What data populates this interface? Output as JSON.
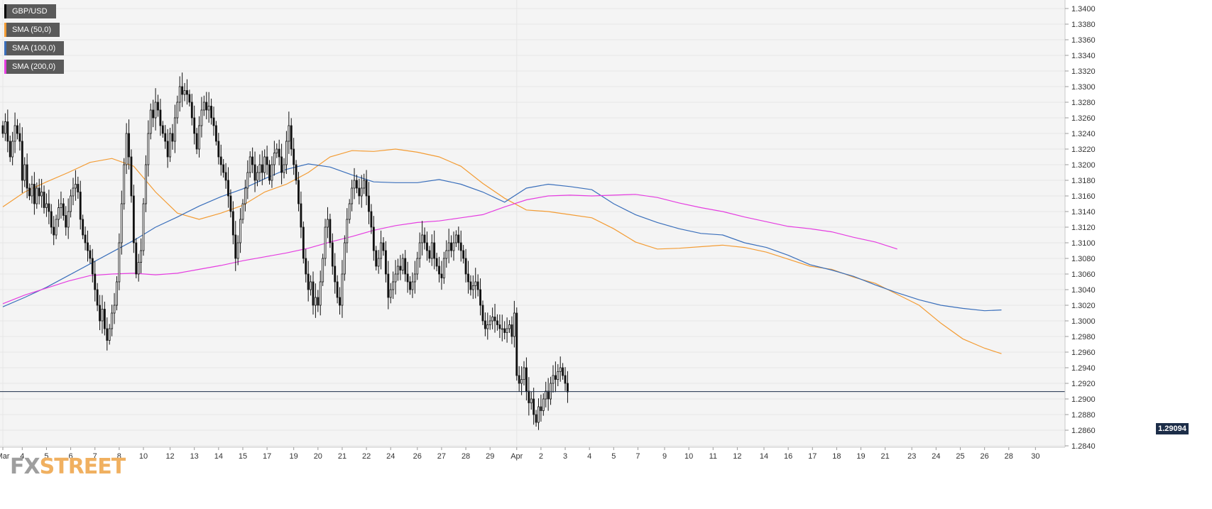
{
  "legend": [
    {
      "label": "GBP/USD",
      "color": "#000000"
    },
    {
      "label": "SMA (50,0)",
      "color": "#f39c34"
    },
    {
      "label": "SMA (100,0)",
      "color": "#3a6fbb"
    },
    {
      "label": "SMA (200,0)",
      "color": "#e53de0"
    }
  ],
  "current_price": "1.29094",
  "watermark": {
    "fx": "FX",
    "street": "STREET"
  },
  "chart_data": {
    "type": "candlestick",
    "symbol": "GBP/USD",
    "ylim": [
      1.284,
      1.34
    ],
    "y_ticks": [
      "1.3400",
      "1.3380",
      "1.3360",
      "1.3340",
      "1.3320",
      "1.3300",
      "1.3280",
      "1.3260",
      "1.3240",
      "1.3220",
      "1.3200",
      "1.3180",
      "1.3160",
      "1.3140",
      "1.3120",
      "1.3100",
      "1.3080",
      "1.3060",
      "1.3040",
      "1.3020",
      "1.3000",
      "1.2980",
      "1.2960",
      "1.2940",
      "1.2920",
      "1.2900",
      "1.2880",
      "1.2860",
      "1.2840"
    ],
    "x_ticks": [
      {
        "label": "Mar",
        "t": 0
      },
      {
        "label": "4",
        "t": 8
      },
      {
        "label": "5",
        "t": 18
      },
      {
        "label": "6",
        "t": 28
      },
      {
        "label": "7",
        "t": 38
      },
      {
        "label": "8",
        "t": 48
      },
      {
        "label": "10",
        "t": 58
      },
      {
        "label": "12",
        "t": 69
      },
      {
        "label": "13",
        "t": 79
      },
      {
        "label": "14",
        "t": 89
      },
      {
        "label": "15",
        "t": 99
      },
      {
        "label": "17",
        "t": 109
      },
      {
        "label": "19",
        "t": 120
      },
      {
        "label": "20",
        "t": 130
      },
      {
        "label": "21",
        "t": 140
      },
      {
        "label": "22",
        "t": 150
      },
      {
        "label": "24",
        "t": 160
      },
      {
        "label": "26",
        "t": 171
      },
      {
        "label": "27",
        "t": 181
      },
      {
        "label": "28",
        "t": 191
      },
      {
        "label": "29",
        "t": 201
      },
      {
        "label": "Apr",
        "t": 212
      },
      {
        "label": "2",
        "t": 222
      },
      {
        "label": "3",
        "t": 232
      },
      {
        "label": "4",
        "t": 242
      },
      {
        "label": "5",
        "t": 252
      },
      {
        "label": "7",
        "t": 262
      },
      {
        "label": "9",
        "t": 273
      },
      {
        "label": "10",
        "t": 283
      },
      {
        "label": "11",
        "t": 293
      },
      {
        "label": "12",
        "t": 303
      },
      {
        "label": "14",
        "t": 314
      },
      {
        "label": "16",
        "t": 324
      },
      {
        "label": "17",
        "t": 334
      },
      {
        "label": "18",
        "t": 344
      },
      {
        "label": "19",
        "t": 354
      },
      {
        "label": "21",
        "t": 364
      },
      {
        "label": "23",
        "t": 375
      },
      {
        "label": "24",
        "t": 385
      },
      {
        "label": "25",
        "t": 395
      },
      {
        "label": "26",
        "t": 405
      },
      {
        "label": "28",
        "t": 415
      },
      {
        "label": "30",
        "t": 426
      }
    ],
    "closes": [
      1.324,
      1.3255,
      1.323,
      1.321,
      1.323,
      1.325,
      1.324,
      1.323,
      1.318,
      1.32,
      1.317,
      1.316,
      1.3175,
      1.315,
      1.317,
      1.316,
      1.3165,
      1.3145,
      1.315,
      1.314,
      1.312,
      1.311,
      1.313,
      1.3145,
      1.315,
      1.3135,
      1.312,
      1.314,
      1.316,
      1.317,
      1.3175,
      1.3165,
      1.313,
      1.311,
      1.31,
      1.309,
      1.308,
      1.306,
      1.304,
      1.302,
      1.3,
      1.3015,
      1.299,
      1.2975,
      1.299,
      1.301,
      1.302,
      1.305,
      1.31,
      1.315,
      1.32,
      1.324,
      1.321,
      1.316,
      1.31,
      1.306,
      1.3075,
      1.309,
      1.315,
      1.32,
      1.324,
      1.327,
      1.326,
      1.328,
      1.327,
      1.325,
      1.324,
      1.323,
      1.321,
      1.324,
      1.323,
      1.326,
      1.328,
      1.33,
      1.329,
      1.3295,
      1.329,
      1.328,
      1.326,
      1.324,
      1.322,
      1.325,
      1.327,
      1.328,
      1.327,
      1.3275,
      1.326,
      1.325,
      1.323,
      1.321,
      1.32,
      1.319,
      1.318,
      1.316,
      1.314,
      1.311,
      1.308,
      1.31,
      1.313,
      1.315,
      1.317,
      1.319,
      1.321,
      1.32,
      1.318,
      1.319,
      1.32,
      1.319,
      1.321,
      1.32,
      1.318,
      1.32,
      1.3215,
      1.322,
      1.321,
      1.319,
      1.32,
      1.323,
      1.325,
      1.322,
      1.32,
      1.318,
      1.315,
      1.312,
      1.308,
      1.306,
      1.304,
      1.305,
      1.302,
      1.303,
      1.302,
      1.305,
      1.308,
      1.312,
      1.313,
      1.31,
      1.307,
      1.305,
      1.303,
      1.302,
      1.306,
      1.31,
      1.313,
      1.315,
      1.317,
      1.318,
      1.317,
      1.316,
      1.317,
      1.318,
      1.316,
      1.314,
      1.312,
      1.309,
      1.307,
      1.308,
      1.31,
      1.309,
      1.306,
      1.303,
      1.304,
      1.305,
      1.306,
      1.307,
      1.3065,
      1.308,
      1.306,
      1.305,
      1.304,
      1.305,
      1.306,
      1.308,
      1.31,
      1.311,
      1.31,
      1.309,
      1.308,
      1.31,
      1.308,
      1.307,
      1.306,
      1.3055,
      1.308,
      1.309,
      1.31,
      1.309,
      1.31,
      1.311,
      1.31,
      1.309,
      1.308,
      1.306,
      1.305,
      1.304,
      1.3045,
      1.305,
      1.304,
      1.302,
      1.3,
      1.299,
      1.2995,
      1.3,
      1.3005,
      1.3,
      1.2995,
      1.299,
      1.299,
      1.2985,
      1.299,
      1.2995,
      1.298,
      1.301,
      1.293,
      1.292,
      1.2925,
      1.294,
      1.291,
      1.2895,
      1.29,
      1.288,
      1.287,
      1.289,
      1.2885,
      1.29,
      1.291,
      1.29,
      1.292,
      1.293,
      1.2925,
      1.2935,
      1.294,
      1.293,
      1.292,
      1.2909
    ],
    "sma50": [
      [
        0,
        1.3146
      ],
      [
        9,
        1.3165
      ],
      [
        18,
        1.3178
      ],
      [
        27,
        1.319
      ],
      [
        36,
        1.3203
      ],
      [
        45,
        1.3208
      ],
      [
        54,
        1.3198
      ],
      [
        63,
        1.3165
      ],
      [
        72,
        1.3138
      ],
      [
        81,
        1.313
      ],
      [
        90,
        1.3138
      ],
      [
        99,
        1.3148
      ],
      [
        108,
        1.3165
      ],
      [
        117,
        1.3175
      ],
      [
        126,
        1.319
      ],
      [
        135,
        1.321
      ],
      [
        144,
        1.3218
      ],
      [
        153,
        1.3217
      ],
      [
        162,
        1.322
      ],
      [
        171,
        1.3216
      ],
      [
        180,
        1.321
      ],
      [
        189,
        1.3198
      ],
      [
        198,
        1.3176
      ],
      [
        207,
        1.3157
      ],
      [
        216,
        1.3142
      ],
      [
        225,
        1.314
      ],
      [
        234,
        1.3136
      ],
      [
        243,
        1.3132
      ],
      [
        252,
        1.3118
      ],
      [
        261,
        1.3101
      ],
      [
        270,
        1.3092
      ],
      [
        279,
        1.3093
      ],
      [
        288,
        1.3095
      ],
      [
        297,
        1.3097
      ],
      [
        306,
        1.3094
      ],
      [
        315,
        1.3088
      ],
      [
        324,
        1.3079
      ],
      [
        333,
        1.307
      ],
      [
        342,
        1.3066
      ],
      [
        351,
        1.3056
      ],
      [
        360,
        1.3048
      ],
      [
        369,
        1.3034
      ],
      [
        378,
        1.302
      ],
      [
        387,
        1.2997
      ],
      [
        396,
        1.2977
      ],
      [
        405,
        1.2965
      ],
      [
        412,
        1.2958
      ]
    ],
    "sma100": [
      [
        0,
        1.3018
      ],
      [
        9,
        1.303
      ],
      [
        18,
        1.3043
      ],
      [
        27,
        1.3058
      ],
      [
        36,
        1.3073
      ],
      [
        45,
        1.3088
      ],
      [
        54,
        1.3103
      ],
      [
        63,
        1.312
      ],
      [
        72,
        1.3133
      ],
      [
        81,
        1.3147
      ],
      [
        90,
        1.3159
      ],
      [
        99,
        1.3169
      ],
      [
        108,
        1.3182
      ],
      [
        117,
        1.3194
      ],
      [
        126,
        1.3201
      ],
      [
        135,
        1.3197
      ],
      [
        144,
        1.3187
      ],
      [
        153,
        1.3178
      ],
      [
        162,
        1.3177
      ],
      [
        171,
        1.3177
      ],
      [
        180,
        1.3181
      ],
      [
        189,
        1.3175
      ],
      [
        198,
        1.3165
      ],
      [
        207,
        1.3152
      ],
      [
        216,
        1.317
      ],
      [
        225,
        1.3175
      ],
      [
        234,
        1.3172
      ],
      [
        243,
        1.3168
      ],
      [
        252,
        1.315
      ],
      [
        261,
        1.3136
      ],
      [
        270,
        1.3126
      ],
      [
        279,
        1.3118
      ],
      [
        288,
        1.3112
      ],
      [
        297,
        1.311
      ],
      [
        306,
        1.31
      ],
      [
        315,
        1.3094
      ],
      [
        324,
        1.3084
      ],
      [
        333,
        1.3072
      ],
      [
        342,
        1.3065
      ],
      [
        351,
        1.3057
      ],
      [
        360,
        1.3046
      ],
      [
        369,
        1.3036
      ],
      [
        378,
        1.3027
      ],
      [
        387,
        1.302
      ],
      [
        396,
        1.3016
      ],
      [
        405,
        1.3013
      ],
      [
        412,
        1.3014
      ]
    ],
    "sma200": [
      [
        0,
        1.3022
      ],
      [
        9,
        1.3033
      ],
      [
        18,
        1.3042
      ],
      [
        27,
        1.3051
      ],
      [
        36,
        1.3058
      ],
      [
        45,
        1.306
      ],
      [
        54,
        1.3061
      ],
      [
        63,
        1.3059
      ],
      [
        72,
        1.3061
      ],
      [
        81,
        1.3066
      ],
      [
        90,
        1.3071
      ],
      [
        99,
        1.3077
      ],
      [
        108,
        1.3082
      ],
      [
        117,
        1.3087
      ],
      [
        126,
        1.3093
      ],
      [
        135,
        1.3101
      ],
      [
        144,
        1.3108
      ],
      [
        153,
        1.3116
      ],
      [
        162,
        1.3122
      ],
      [
        171,
        1.3126
      ],
      [
        180,
        1.3128
      ],
      [
        189,
        1.3132
      ],
      [
        198,
        1.3136
      ],
      [
        207,
        1.3146
      ],
      [
        216,
        1.3155
      ],
      [
        225,
        1.316
      ],
      [
        234,
        1.3161
      ],
      [
        243,
        1.316
      ],
      [
        252,
        1.3161
      ],
      [
        261,
        1.3162
      ],
      [
        270,
        1.3158
      ],
      [
        279,
        1.3151
      ],
      [
        288,
        1.3145
      ],
      [
        297,
        1.314
      ],
      [
        306,
        1.3133
      ],
      [
        315,
        1.3127
      ],
      [
        324,
        1.3121
      ],
      [
        333,
        1.3118
      ],
      [
        342,
        1.3114
      ],
      [
        351,
        1.3107
      ],
      [
        360,
        1.3101
      ],
      [
        369,
        1.3092
      ]
    ],
    "last_price_line": 1.29094
  }
}
